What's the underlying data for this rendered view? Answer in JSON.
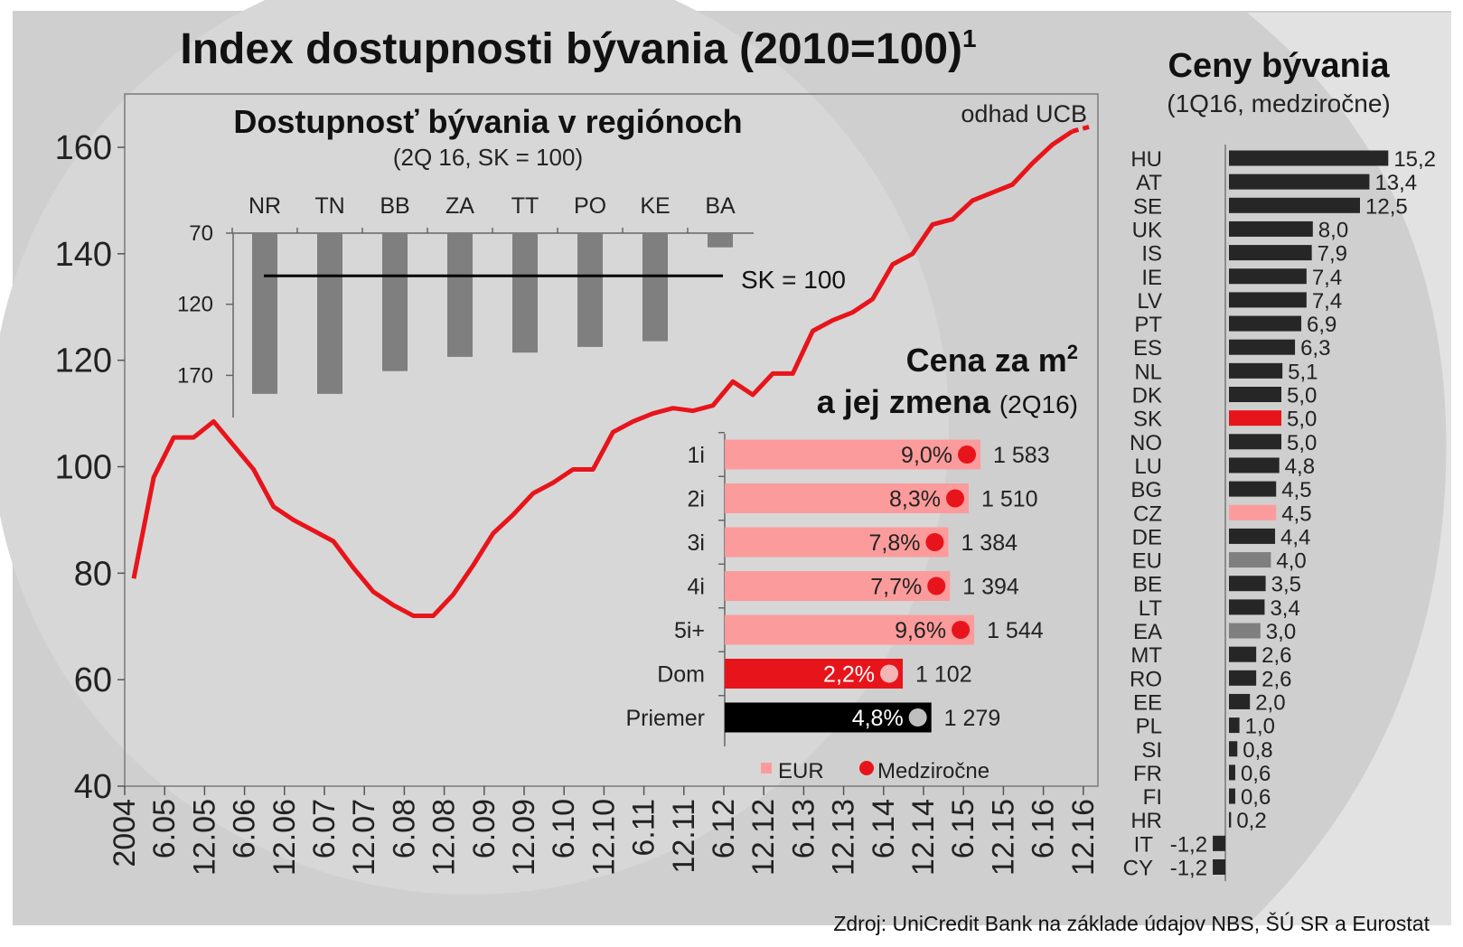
{
  "title_main": "Index dostupnosti bývania (2010=100)",
  "title_main_sup": "1",
  "estimate_label": "odhad UCB",
  "source_note": "Zdroj: UniCredit Bank na základe údajov NBS, ŠÚ SR a Eurostat",
  "colors": {
    "red": "#e8141b",
    "pink": "#fc9b9b",
    "dark": "#262626",
    "grey": "#7f7f7f",
    "black": "#000000",
    "circle_light": "#f6b5b5",
    "circle_grey": "#bfbfbf"
  },
  "chart_data": [
    {
      "id": "affordability_index",
      "type": "line",
      "title": "Index dostupnosti bývania (2010=100)",
      "ylim": [
        40,
        170
      ],
      "yticks": [
        40,
        60,
        80,
        100,
        120,
        140,
        160
      ],
      "x_ticks": [
        "2004",
        "6.05",
        "12.05",
        "6.06",
        "12.06",
        "6.07",
        "12.07",
        "6.08",
        "12.08",
        "6.09",
        "12.09",
        "6.10",
        "12.10",
        "6.11",
        "12.11",
        "6.12",
        "12.12",
        "6.13",
        "12.13",
        "6.14",
        "12.14",
        "6.15",
        "12.15",
        "6.16",
        "12.16"
      ],
      "x_axis": "quarterly periods, tick every half-year from Dec 2004 to Dec 2016",
      "values": [
        79,
        98,
        105.5,
        105.5,
        108.5,
        104,
        99.5,
        92.5,
        90,
        88,
        86,
        81,
        76.5,
        74,
        72,
        72,
        76,
        81.5,
        87.5,
        91,
        95,
        97,
        99.5,
        99.5,
        106.5,
        108.5,
        110,
        111,
        110.5,
        111.5,
        116,
        113.5,
        117.5,
        117.5,
        125.5,
        127.5,
        129,
        131.5,
        138,
        140,
        145.5,
        146.5,
        150,
        151.5,
        153,
        157,
        160.5,
        163,
        164
      ],
      "estimate_from_index": 47
    },
    {
      "id": "regional_affordability",
      "type": "bar",
      "title": "Dostupnosť bývania v regiónoch",
      "subtitle": "(2Q 16, SK = 100)",
      "categories": [
        "NR",
        "TN",
        "BB",
        "ZA",
        "TT",
        "PO",
        "KE",
        "BA"
      ],
      "values": [
        183,
        183,
        167,
        157,
        154,
        150,
        146,
        80
      ],
      "ylim": [
        70,
        190
      ],
      "yticks": [
        70,
        120,
        170
      ],
      "reference_line": {
        "value": 100,
        "label": "SK = 100"
      }
    },
    {
      "id": "price_per_m2",
      "type": "bar",
      "title_line1": "Cena za m",
      "title_sup": "2",
      "title_line2": "a jej zmena",
      "title_period": "(2Q16)",
      "orientation": "horizontal",
      "categories": [
        "1i",
        "2i",
        "3i",
        "4i",
        "5i+",
        "Dom",
        "Priemer"
      ],
      "values_eur": [
        1583,
        1510,
        1384,
        1394,
        1544,
        1102,
        1279
      ],
      "value_labels": [
        "1 583",
        "1 510",
        "1 384",
        "1 394",
        "1 544",
        "1 102",
        "1 279"
      ],
      "yoy_labels": [
        "9,0%",
        "8,3%",
        "7,8%",
        "7,7%",
        "9,6%",
        "2,2%",
        "4,8%"
      ],
      "bar_styles": [
        "pink",
        "pink",
        "pink",
        "pink",
        "pink",
        "red",
        "black"
      ],
      "dot_styles": [
        "red",
        "red",
        "red",
        "red",
        "red",
        "light",
        "grey"
      ],
      "legend": [
        "EUR",
        "Medziročne"
      ]
    },
    {
      "id": "house_prices_eu",
      "type": "bar",
      "orientation": "horizontal",
      "title": "Ceny bývania",
      "subtitle": "(1Q16, medziročne)",
      "categories": [
        "HU",
        "AT",
        "SE",
        "UK",
        "IS",
        "IE",
        "LV",
        "PT",
        "ES",
        "NL",
        "DK",
        "SK",
        "NO",
        "LU",
        "BG",
        "CZ",
        "DE",
        "EU",
        "BE",
        "LT",
        "EA",
        "MT",
        "RO",
        "EE",
        "PL",
        "SI",
        "FR",
        "FI",
        "HR",
        "IT",
        "CY"
      ],
      "values": [
        15.2,
        13.4,
        12.5,
        8.0,
        7.9,
        7.4,
        7.4,
        6.9,
        6.3,
        5.1,
        5.0,
        5.0,
        5.0,
        4.8,
        4.5,
        4.5,
        4.4,
        4.0,
        3.5,
        3.4,
        3.0,
        2.6,
        2.6,
        2.0,
        1.0,
        0.8,
        0.6,
        0.6,
        0.2,
        -1.2,
        -1.2
      ],
      "value_labels": [
        "15,2",
        "13,4",
        "12,5",
        "8,0",
        "7,9",
        "7,4",
        "7,4",
        "6,9",
        "6,3",
        "5,1",
        "5,0",
        "5,0",
        "5,0",
        "4,8",
        "4,5",
        "4,5",
        "4,4",
        "4,0",
        "3,5",
        "3,4",
        "3,0",
        "2,6",
        "2,6",
        "2,0",
        "1,0",
        "0,8",
        "0,6",
        "0,6",
        "0,2",
        "-1,2",
        "-1,2"
      ],
      "highlight": {
        "SK": "red",
        "CZ": "pink",
        "EU": "grey",
        "EA": "grey"
      }
    }
  ]
}
